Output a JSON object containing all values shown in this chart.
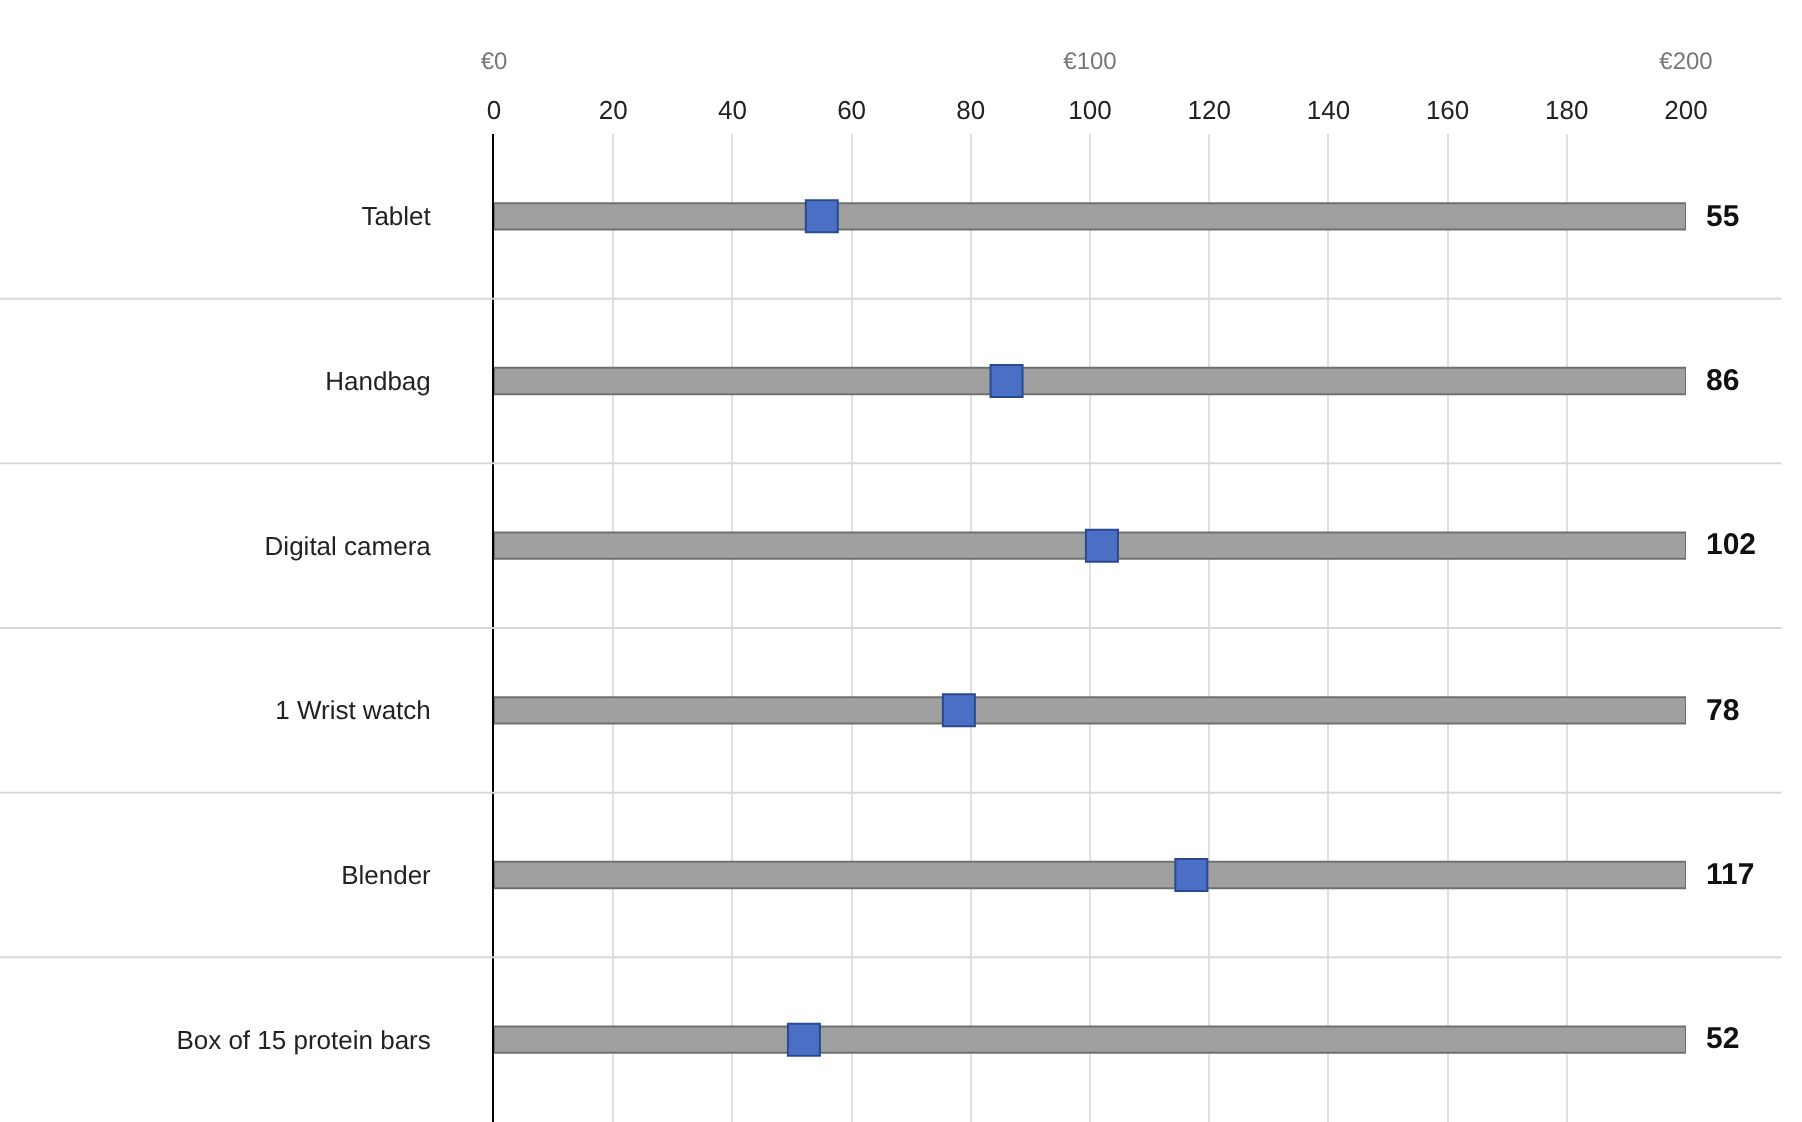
{
  "chart_data": {
    "type": "bar",
    "orientation": "horizontal",
    "categories": [
      "Tablet",
      "Handbag",
      "Digital camera",
      "1 Wrist watch",
      "Blender",
      "Box of 15 protein bars"
    ],
    "series": [
      {
        "color": "#a0a0a0",
        "values": [
          200,
          200,
          200,
          200,
          200,
          200
        ]
      },
      {
        "type": "scatter",
        "color": "#4a6fc4",
        "marker": "square",
        "values": [
          55,
          86,
          102,
          78,
          117,
          52
        ]
      }
    ],
    "annotations": [
      "55",
      "86",
      "102",
      "78",
      "117",
      "52"
    ],
    "xlim": [
      0,
      200
    ],
    "xticks": [
      0,
      20,
      40,
      60,
      80,
      100,
      120,
      140,
      160,
      180,
      200
    ],
    "x2lim": [
      0,
      200
    ],
    "x2ticks": [
      {
        "value": 0,
        "label": "€0"
      },
      {
        "value": 100,
        "label": "€100"
      },
      {
        "value": 200,
        "label": "€200"
      }
    ],
    "grid": "x"
  }
}
